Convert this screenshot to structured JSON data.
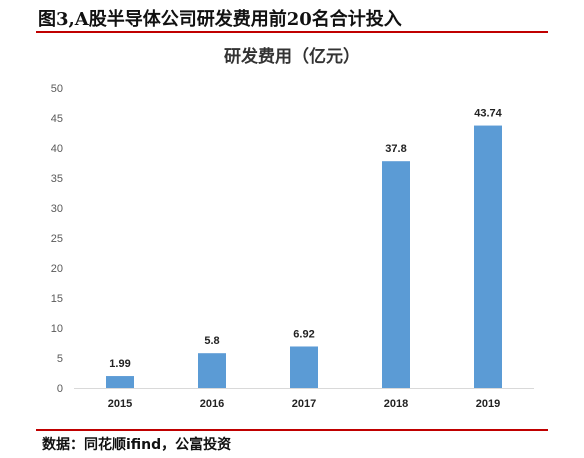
{
  "figure": {
    "caption": "图3,A股半导体公司研发费用前20名合计投入",
    "source": "数据：同花顺ifind，公富投资"
  },
  "colors": {
    "bar": "#5b9bd5",
    "rule": "#c00000",
    "axis": "#d9d9d9"
  },
  "chart_data": {
    "type": "bar",
    "title": "研发费用（亿元）",
    "categories": [
      "2015",
      "2016",
      "2017",
      "2018",
      "2019"
    ],
    "values": [
      1.99,
      5.8,
      6.92,
      37.8,
      43.74
    ],
    "data_labels": [
      "1.99",
      "5.8",
      "6.92",
      "37.8",
      "43.74"
    ],
    "ylim": [
      0,
      50
    ],
    "yticks": [
      0,
      5,
      10,
      15,
      20,
      25,
      30,
      35,
      40,
      45,
      50
    ],
    "grid": false,
    "xlabel": "",
    "ylabel": ""
  }
}
